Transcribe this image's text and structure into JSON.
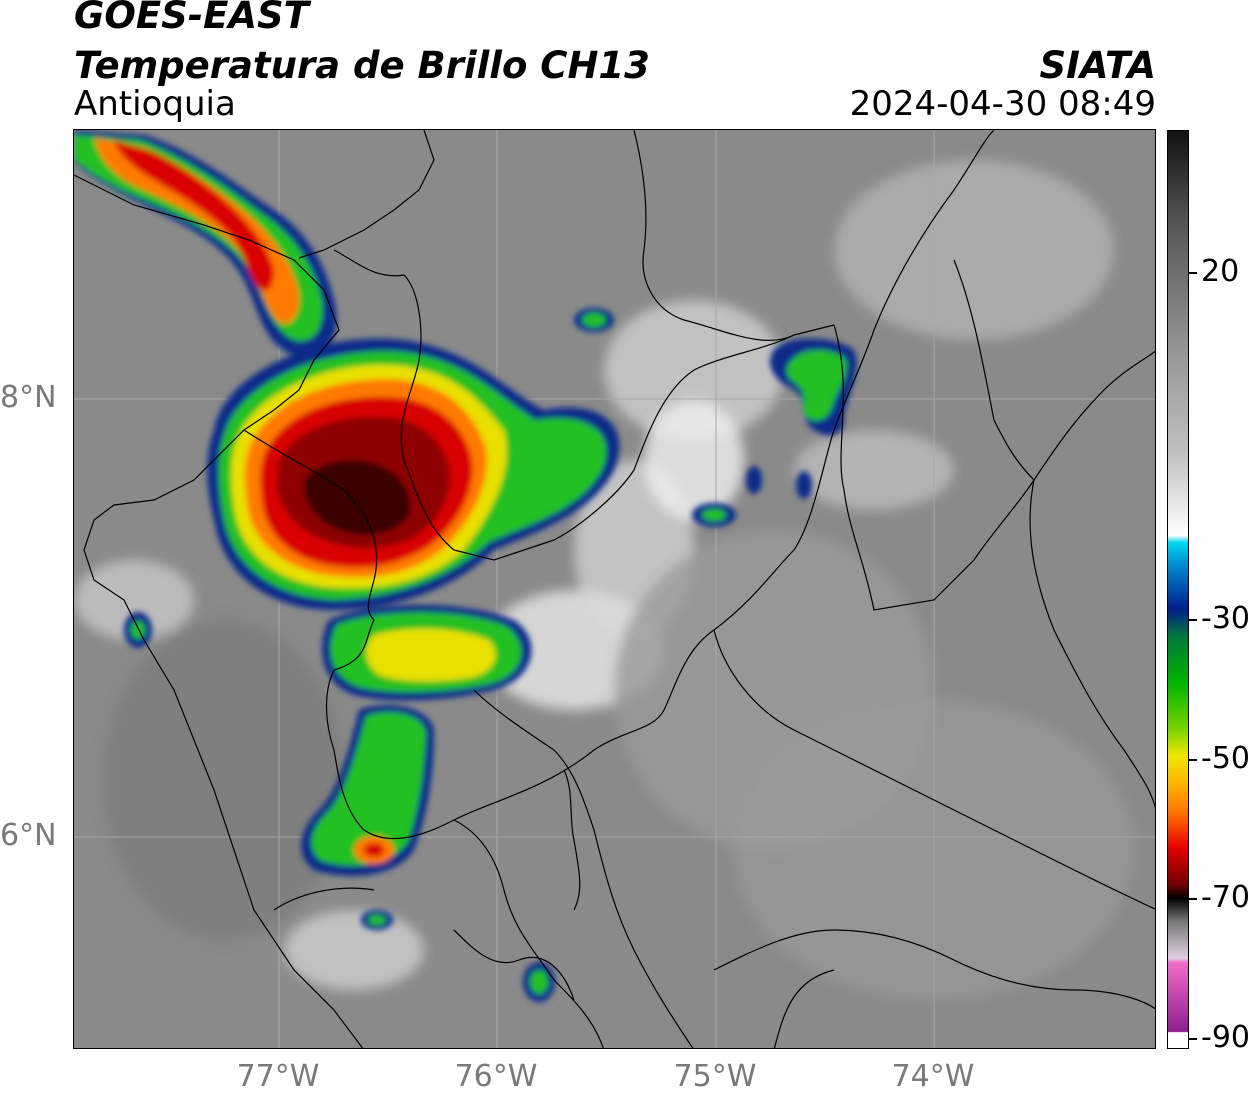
{
  "header": {
    "satellite": "GOES-EAST",
    "product": "Temperatura de Brillo CH13",
    "region": "Antioquia",
    "organization": "SIATA",
    "timestamp": "2024-04-30 08:49"
  },
  "axes": {
    "latitude_labels": [
      "8°N",
      "6°N"
    ],
    "longitude_labels": [
      "77°W",
      "76°W",
      "75°W",
      "74°W"
    ]
  },
  "colorbar": {
    "tick_labels": [
      "20",
      "-30",
      "-50",
      "-70",
      "-90"
    ],
    "colors": {
      "gray_top": "#111111",
      "white": "#ffffff",
      "cyan": "#00d8f0",
      "blue": "#001e8a",
      "green": "#00b400",
      "yellow": "#f0e600",
      "orange": "#ff7800",
      "red": "#e60000",
      "dark_red": "#6e0000",
      "black": "#000000",
      "pink": "#f06ec8",
      "purple": "#8c1e8c"
    }
  },
  "map_colors": {
    "background": "#8a8a8a",
    "storm_outer": "#0a2a8a",
    "storm_green": "#22c022",
    "storm_yellow": "#e8e000",
    "storm_orange": "#ff7a00",
    "storm_red": "#d80000",
    "storm_core": "#3a0000"
  }
}
